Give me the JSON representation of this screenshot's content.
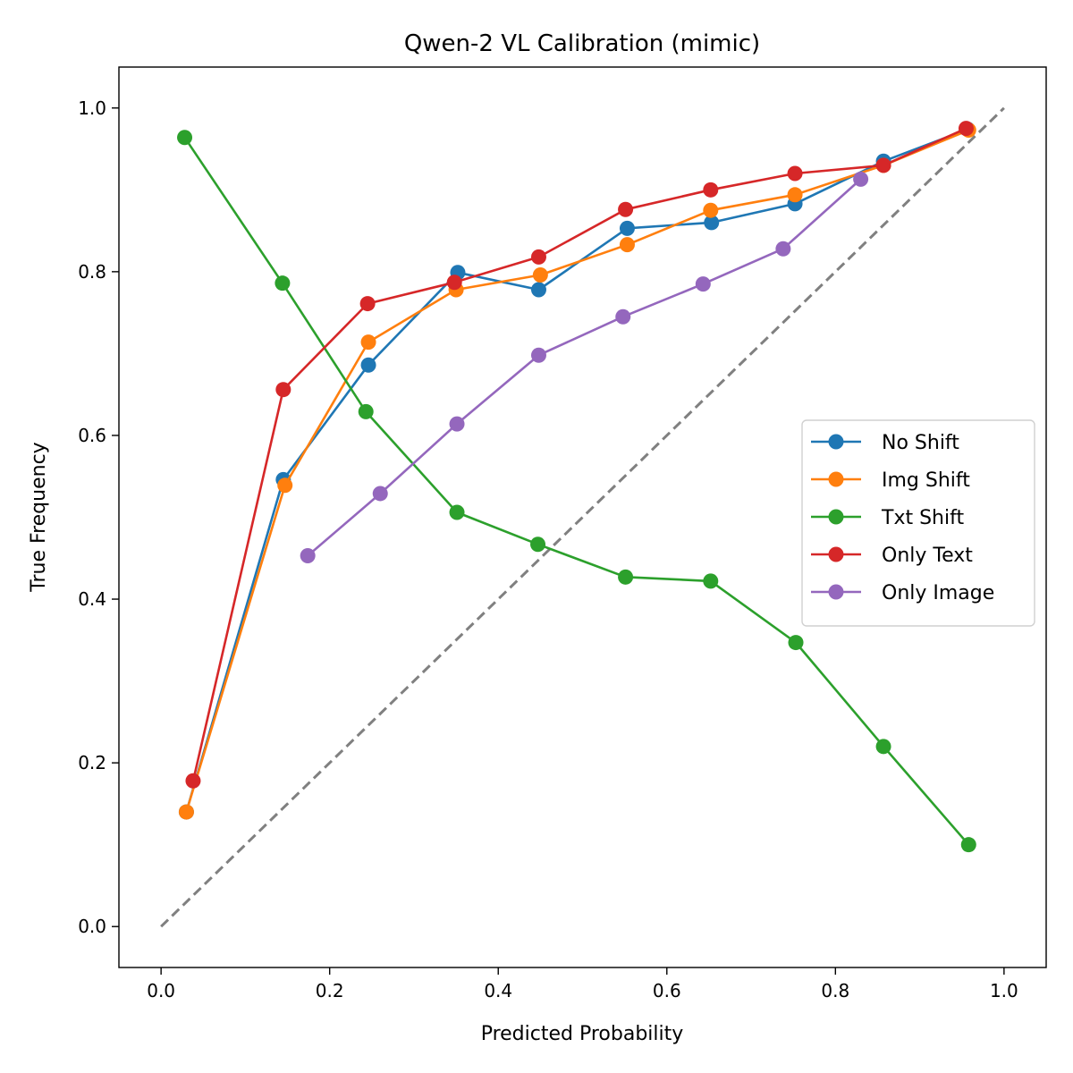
{
  "chart_data": {
    "type": "line",
    "title": "Qwen-2 VL Calibration (mimic)",
    "xlabel": "Predicted Probability",
    "ylabel": "True Frequency",
    "xlim": [
      -0.05,
      1.05
    ],
    "ylim": [
      -0.05,
      1.05
    ],
    "xticks": [
      0.0,
      0.2,
      0.4,
      0.6,
      0.8,
      1.0
    ],
    "yticks": [
      0.0,
      0.2,
      0.4,
      0.6,
      0.8,
      1.0
    ],
    "xtick_labels": [
      "0.0",
      "0.2",
      "0.4",
      "0.6",
      "0.8",
      "1.0"
    ],
    "ytick_labels": [
      "0.0",
      "0.2",
      "0.4",
      "0.6",
      "0.8",
      "1.0"
    ],
    "grid": false,
    "legend_position": "center-right",
    "reference_line": {
      "x": [
        0,
        1
      ],
      "y": [
        0,
        1
      ],
      "color": "#808080",
      "style": "dashed"
    },
    "series": [
      {
        "name": "No Shift",
        "color": "#1f77b4",
        "x": [
          0.03,
          0.145,
          0.246,
          0.352,
          0.448,
          0.553,
          0.653,
          0.752,
          0.857,
          0.957
        ],
        "y": [
          0.14,
          0.546,
          0.686,
          0.799,
          0.778,
          0.853,
          0.86,
          0.883,
          0.935,
          0.974
        ]
      },
      {
        "name": "Img Shift",
        "color": "#ff7f0e",
        "x": [
          0.03,
          0.147,
          0.246,
          0.35,
          0.45,
          0.553,
          0.652,
          0.752,
          0.857,
          0.958
        ],
        "y": [
          0.14,
          0.539,
          0.714,
          0.778,
          0.796,
          0.833,
          0.875,
          0.894,
          0.93,
          0.973
        ]
      },
      {
        "name": "Txt Shift",
        "color": "#2ca02c",
        "x": [
          0.028,
          0.144,
          0.243,
          0.351,
          0.447,
          0.551,
          0.652,
          0.753,
          0.857,
          0.958
        ],
        "y": [
          0.964,
          0.786,
          0.629,
          0.506,
          0.467,
          0.427,
          0.422,
          0.347,
          0.22,
          0.1
        ]
      },
      {
        "name": "Only Text",
        "color": "#d62728",
        "x": [
          0.038,
          0.145,
          0.245,
          0.348,
          0.448,
          0.551,
          0.652,
          0.752,
          0.857,
          0.955
        ],
        "y": [
          0.178,
          0.656,
          0.761,
          0.787,
          0.818,
          0.876,
          0.9,
          0.92,
          0.93,
          0.975
        ]
      },
      {
        "name": "Only Image",
        "color": "#9467bd",
        "x": [
          0.174,
          0.26,
          0.351,
          0.448,
          0.548,
          0.643,
          0.738,
          0.83
        ],
        "y": [
          0.453,
          0.529,
          0.614,
          0.698,
          0.745,
          0.785,
          0.828,
          0.913
        ]
      }
    ]
  }
}
